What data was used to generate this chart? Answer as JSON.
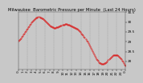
{
  "title": "Milwaukee  Barometric Pressure per Minute  (Last 24 Hours)",
  "bg_color": "#c8c8c8",
  "plot_bg_color": "#c8c8c8",
  "line_color": "#dd0000",
  "grid_color": "#888888",
  "y_values": [
    29.05,
    29.09,
    29.14,
    29.19,
    29.25,
    29.31,
    29.37,
    29.43,
    29.49,
    29.55,
    29.61,
    29.67,
    29.73,
    29.79,
    29.85,
    29.91,
    29.97,
    30.02,
    30.07,
    30.12,
    30.16,
    30.19,
    30.22,
    30.24,
    30.25,
    30.25,
    30.24,
    30.22,
    30.2,
    30.17,
    30.13,
    30.09,
    30.05,
    30.01,
    29.97,
    29.93,
    29.89,
    29.85,
    29.82,
    29.79,
    29.77,
    29.75,
    29.73,
    29.72,
    29.72,
    29.72,
    29.73,
    29.74,
    29.76,
    29.78,
    29.8,
    29.82,
    29.84,
    29.86,
    29.87,
    29.88,
    29.89,
    29.89,
    29.89,
    29.88,
    29.87,
    29.86,
    29.84,
    29.82,
    29.8,
    29.78,
    29.76,
    29.74,
    29.72,
    29.7,
    29.67,
    29.64,
    29.61,
    29.57,
    29.53,
    29.48,
    29.43,
    29.38,
    29.32,
    29.26,
    29.2,
    29.13,
    29.06,
    28.99,
    28.91,
    28.83,
    28.75,
    28.67,
    28.59,
    28.51,
    28.43,
    28.35,
    28.27,
    28.2,
    28.13,
    28.07,
    28.02,
    27.97,
    27.93,
    27.9,
    27.88,
    27.87,
    27.87,
    27.88,
    27.9,
    27.93,
    27.97,
    28.01,
    28.06,
    28.11,
    28.16,
    28.2,
    28.24,
    28.27,
    28.3,
    28.32,
    28.33,
    28.33,
    28.32,
    28.31,
    28.28,
    28.25,
    28.21,
    28.16,
    28.11,
    28.05,
    27.99,
    27.92,
    27.85,
    27.78
  ],
  "ylim": [
    27.6,
    30.5
  ],
  "yticks": [
    28.0,
    28.5,
    29.0,
    29.5,
    30.0,
    30.5
  ],
  "ytick_labels": [
    "28",
    "28.5",
    "29",
    "29.5",
    "30",
    "30.5"
  ],
  "num_vgrid": 12,
  "title_fontsize": 3.8,
  "tick_fontsize": 3.0,
  "marker_size": 0.7,
  "num_xticks": 25
}
